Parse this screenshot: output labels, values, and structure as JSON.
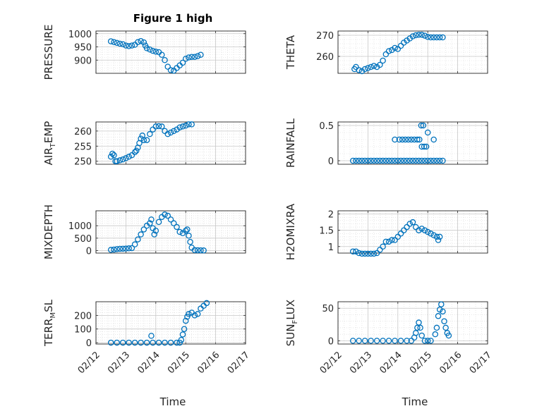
{
  "figure": {
    "title": "Figure 1 high",
    "marker_color": "#0072BD",
    "grid": "major-and-minor"
  },
  "chart_data": [
    {
      "type": "scatter",
      "ylabel": "PRESSURE",
      "ylim": [
        850,
        1010
      ],
      "yticks": [
        900,
        950,
        1000
      ],
      "xticks": [
        "02/12",
        "02/13",
        "02/14",
        "02/15",
        "02/16",
        "02/17"
      ],
      "xlim": [
        0,
        5
      ],
      "show_xticklabels": false,
      "points": [
        [
          0.5,
          971
        ],
        [
          0.6,
          968
        ],
        [
          0.7,
          965
        ],
        [
          0.8,
          962
        ],
        [
          0.9,
          960
        ],
        [
          1.0,
          955
        ],
        [
          1.1,
          953
        ],
        [
          1.2,
          955
        ],
        [
          1.3,
          958
        ],
        [
          1.4,
          968
        ],
        [
          1.5,
          972
        ],
        [
          1.6,
          967
        ],
        [
          1.65,
          955
        ],
        [
          1.7,
          945
        ],
        [
          1.8,
          940
        ],
        [
          1.9,
          935
        ],
        [
          2.0,
          932
        ],
        [
          2.1,
          930
        ],
        [
          2.2,
          920
        ],
        [
          2.3,
          900
        ],
        [
          2.4,
          875
        ],
        [
          2.5,
          862
        ],
        [
          2.6,
          860
        ],
        [
          2.7,
          870
        ],
        [
          2.8,
          880
        ],
        [
          2.9,
          890
        ],
        [
          3.0,
          905
        ],
        [
          3.1,
          910
        ],
        [
          3.2,
          912
        ],
        [
          3.3,
          912
        ],
        [
          3.4,
          915
        ],
        [
          3.5,
          920
        ]
      ]
    },
    {
      "type": "scatter",
      "ylabel": "THETA",
      "ylim": [
        252,
        272
      ],
      "yticks": [
        260,
        270
      ],
      "xticks": [
        "02/12",
        "02/13",
        "02/14",
        "02/15",
        "02/16",
        "02/17"
      ],
      "xlim": [
        0,
        5
      ],
      "show_xticklabels": false,
      "points": [
        [
          0.55,
          254
        ],
        [
          0.6,
          255
        ],
        [
          0.7,
          253.5
        ],
        [
          0.8,
          253
        ],
        [
          0.9,
          254
        ],
        [
          1.0,
          254.5
        ],
        [
          1.1,
          255
        ],
        [
          1.2,
          255.5
        ],
        [
          1.3,
          255
        ],
        [
          1.4,
          256
        ],
        [
          1.5,
          258
        ],
        [
          1.6,
          261
        ],
        [
          1.7,
          262.5
        ],
        [
          1.8,
          263
        ],
        [
          1.9,
          264
        ],
        [
          2.0,
          263.5
        ],
        [
          2.1,
          265
        ],
        [
          2.2,
          266.5
        ],
        [
          2.3,
          267.5
        ],
        [
          2.4,
          268.5
        ],
        [
          2.5,
          269.5
        ],
        [
          2.6,
          270
        ],
        [
          2.7,
          270.2
        ],
        [
          2.8,
          270.2
        ],
        [
          2.9,
          269.8
        ],
        [
          3.0,
          269.2
        ],
        [
          3.1,
          269
        ],
        [
          3.2,
          269
        ],
        [
          3.3,
          269
        ],
        [
          3.4,
          269
        ],
        [
          3.5,
          269
        ]
      ]
    },
    {
      "type": "scatter",
      "ylabel": "AIR_TEMP",
      "ylim": [
        249,
        263
      ],
      "yticks": [
        250,
        255,
        260
      ],
      "xticks": [
        "02/12",
        "02/13",
        "02/14",
        "02/15",
        "02/16",
        "02/17"
      ],
      "xlim": [
        0,
        5
      ],
      "show_xticklabels": false,
      "points": [
        [
          0.5,
          251.5
        ],
        [
          0.55,
          252.5
        ],
        [
          0.6,
          252
        ],
        [
          0.65,
          250
        ],
        [
          0.7,
          250
        ],
        [
          0.8,
          250.3
        ],
        [
          0.9,
          250.6
        ],
        [
          1.0,
          251
        ],
        [
          1.1,
          251.5
        ],
        [
          1.2,
          252
        ],
        [
          1.3,
          253
        ],
        [
          1.35,
          253.5
        ],
        [
          1.4,
          254.5
        ],
        [
          1.45,
          256
        ],
        [
          1.5,
          257.5
        ],
        [
          1.55,
          258.5
        ],
        [
          1.6,
          257
        ],
        [
          1.7,
          257
        ],
        [
          1.8,
          259
        ],
        [
          1.9,
          260.5
        ],
        [
          2.0,
          261.5
        ],
        [
          2.1,
          261.6
        ],
        [
          2.2,
          261.5
        ],
        [
          2.3,
          260
        ],
        [
          2.4,
          259
        ],
        [
          2.5,
          259.5
        ],
        [
          2.6,
          260
        ],
        [
          2.7,
          260.5
        ],
        [
          2.8,
          261.2
        ],
        [
          2.9,
          261.5
        ],
        [
          3.0,
          261.8
        ],
        [
          3.1,
          262.2
        ],
        [
          3.2,
          262.2
        ]
      ]
    },
    {
      "type": "scatter",
      "ylabel": "RAINFALL",
      "ylim": [
        -0.05,
        0.55
      ],
      "yticks": [
        0,
        0.5
      ],
      "xticks": [
        "02/12",
        "02/13",
        "02/14",
        "02/15",
        "02/16",
        "02/17"
      ],
      "xlim": [
        0,
        5
      ],
      "show_xticklabels": false,
      "points": [
        [
          0.5,
          0
        ],
        [
          0.6,
          0
        ],
        [
          0.7,
          0
        ],
        [
          0.8,
          0
        ],
        [
          0.9,
          0
        ],
        [
          1.0,
          0
        ],
        [
          1.1,
          0
        ],
        [
          1.2,
          0
        ],
        [
          1.3,
          0
        ],
        [
          1.4,
          0
        ],
        [
          1.5,
          0
        ],
        [
          1.6,
          0
        ],
        [
          1.7,
          0
        ],
        [
          1.8,
          0
        ],
        [
          1.9,
          0
        ],
        [
          2.0,
          0
        ],
        [
          2.1,
          0
        ],
        [
          2.2,
          0
        ],
        [
          2.3,
          0
        ],
        [
          2.4,
          0
        ],
        [
          2.5,
          0
        ],
        [
          2.6,
          0
        ],
        [
          2.7,
          0
        ],
        [
          2.8,
          0
        ],
        [
          2.9,
          0
        ],
        [
          3.0,
          0
        ],
        [
          3.1,
          0
        ],
        [
          3.2,
          0
        ],
        [
          3.3,
          0
        ],
        [
          3.4,
          0
        ],
        [
          3.5,
          0
        ],
        [
          1.9,
          0.3
        ],
        [
          2.05,
          0.3
        ],
        [
          2.15,
          0.3
        ],
        [
          2.25,
          0.3
        ],
        [
          2.35,
          0.3
        ],
        [
          2.45,
          0.3
        ],
        [
          2.55,
          0.3
        ],
        [
          2.65,
          0.3
        ],
        [
          2.72,
          0.3
        ],
        [
          2.78,
          0.5
        ],
        [
          2.85,
          0.5
        ],
        [
          2.8,
          0.2
        ],
        [
          2.88,
          0.2
        ],
        [
          2.95,
          0.2
        ],
        [
          3.0,
          0.4
        ],
        [
          3.2,
          0.3
        ]
      ]
    },
    {
      "type": "scatter",
      "ylabel": "MIXDEPTH",
      "ylim": [
        -100,
        1600
      ],
      "yticks": [
        0,
        500,
        1000
      ],
      "xticks": [
        "02/12",
        "02/13",
        "02/14",
        "02/15",
        "02/16",
        "02/17"
      ],
      "xlim": [
        0,
        5
      ],
      "show_xticklabels": false,
      "points": [
        [
          0.5,
          30
        ],
        [
          0.6,
          40
        ],
        [
          0.7,
          60
        ],
        [
          0.8,
          70
        ],
        [
          0.9,
          75
        ],
        [
          1.0,
          80
        ],
        [
          1.1,
          90
        ],
        [
          1.2,
          100
        ],
        [
          1.3,
          250
        ],
        [
          1.4,
          450
        ],
        [
          1.5,
          650
        ],
        [
          1.6,
          850
        ],
        [
          1.7,
          1000
        ],
        [
          1.8,
          1100
        ],
        [
          1.85,
          1250
        ],
        [
          1.9,
          900
        ],
        [
          1.95,
          650
        ],
        [
          2.0,
          800
        ],
        [
          2.1,
          1150
        ],
        [
          2.2,
          1350
        ],
        [
          2.3,
          1450
        ],
        [
          2.4,
          1400
        ],
        [
          2.5,
          1250
        ],
        [
          2.6,
          1100
        ],
        [
          2.7,
          950
        ],
        [
          2.8,
          750
        ],
        [
          2.9,
          700
        ],
        [
          3.0,
          800
        ],
        [
          3.05,
          850
        ],
        [
          3.1,
          600
        ],
        [
          3.15,
          350
        ],
        [
          3.2,
          120
        ],
        [
          3.3,
          20
        ],
        [
          3.4,
          15
        ],
        [
          3.5,
          10
        ],
        [
          3.6,
          5
        ]
      ]
    },
    {
      "type": "scatter",
      "ylabel": "H2OMIXRA",
      "ylim": [
        0.8,
        2.1
      ],
      "yticks": [
        1,
        1.5,
        2
      ],
      "xticks": [
        "02/12",
        "02/13",
        "02/14",
        "02/15",
        "02/16",
        "02/17"
      ],
      "xlim": [
        0,
        5
      ],
      "show_xticklabels": false,
      "points": [
        [
          0.5,
          0.85
        ],
        [
          0.6,
          0.85
        ],
        [
          0.7,
          0.8
        ],
        [
          0.8,
          0.78
        ],
        [
          0.9,
          0.78
        ],
        [
          1.0,
          0.78
        ],
        [
          1.1,
          0.78
        ],
        [
          1.2,
          0.78
        ],
        [
          1.3,
          0.8
        ],
        [
          1.4,
          0.9
        ],
        [
          1.5,
          1.0
        ],
        [
          1.6,
          1.15
        ],
        [
          1.7,
          1.15
        ],
        [
          1.8,
          1.2
        ],
        [
          1.9,
          1.2
        ],
        [
          2.0,
          1.3
        ],
        [
          2.1,
          1.4
        ],
        [
          2.2,
          1.5
        ],
        [
          2.3,
          1.6
        ],
        [
          2.4,
          1.7
        ],
        [
          2.5,
          1.75
        ],
        [
          2.6,
          1.6
        ],
        [
          2.7,
          1.5
        ],
        [
          2.8,
          1.55
        ],
        [
          2.9,
          1.5
        ],
        [
          3.0,
          1.45
        ],
        [
          3.1,
          1.4
        ],
        [
          3.2,
          1.35
        ],
        [
          3.3,
          1.3
        ],
        [
          3.35,
          1.2
        ],
        [
          3.4,
          1.3
        ]
      ]
    },
    {
      "type": "scatter",
      "ylabel": "TERR_MSL",
      "ylim": [
        -10,
        300
      ],
      "yticks": [
        0,
        100,
        200
      ],
      "xticks": [
        "02/12",
        "02/13",
        "02/14",
        "02/15",
        "02/16",
        "02/17"
      ],
      "xlim": [
        0,
        5
      ],
      "show_xticklabels": true,
      "points": [
        [
          0.5,
          0
        ],
        [
          0.7,
          0
        ],
        [
          0.9,
          0
        ],
        [
          1.1,
          0
        ],
        [
          1.3,
          0
        ],
        [
          1.5,
          0
        ],
        [
          1.7,
          0
        ],
        [
          1.9,
          0
        ],
        [
          2.1,
          0
        ],
        [
          2.3,
          0
        ],
        [
          2.5,
          0
        ],
        [
          2.7,
          0
        ],
        [
          2.8,
          0
        ],
        [
          1.85,
          50
        ],
        [
          2.85,
          20
        ],
        [
          2.9,
          60
        ],
        [
          2.95,
          100
        ],
        [
          3.0,
          160
        ],
        [
          3.05,
          190
        ],
        [
          3.1,
          210
        ],
        [
          3.2,
          220
        ],
        [
          3.3,
          200
        ],
        [
          3.4,
          210
        ],
        [
          3.5,
          250
        ],
        [
          3.6,
          270
        ],
        [
          3.7,
          290
        ]
      ]
    },
    {
      "type": "scatter",
      "ylabel": "SUN_FLUX",
      "ylim": [
        -5,
        60
      ],
      "yticks": [
        0,
        50
      ],
      "xticks": [
        "02/12",
        "02/13",
        "02/14",
        "02/15",
        "02/16",
        "02/17"
      ],
      "xlim": [
        0,
        5
      ],
      "show_xticklabels": true,
      "points": [
        [
          0.5,
          0
        ],
        [
          0.7,
          0
        ],
        [
          0.9,
          0
        ],
        [
          1.1,
          0
        ],
        [
          1.3,
          0
        ],
        [
          1.5,
          0
        ],
        [
          1.7,
          0
        ],
        [
          1.9,
          0
        ],
        [
          2.1,
          0
        ],
        [
          2.3,
          0
        ],
        [
          2.45,
          0
        ],
        [
          2.55,
          5
        ],
        [
          2.6,
          12
        ],
        [
          2.65,
          20
        ],
        [
          2.7,
          28
        ],
        [
          2.75,
          20
        ],
        [
          2.8,
          8
        ],
        [
          2.9,
          0
        ],
        [
          3.0,
          0
        ],
        [
          3.1,
          0
        ],
        [
          3.25,
          10
        ],
        [
          3.3,
          20
        ],
        [
          3.35,
          38
        ],
        [
          3.4,
          48
        ],
        [
          3.45,
          56
        ],
        [
          3.5,
          45
        ],
        [
          3.55,
          30
        ],
        [
          3.6,
          20
        ],
        [
          3.65,
          12
        ],
        [
          3.7,
          8
        ]
      ]
    }
  ],
  "xlabels": [
    "Time",
    "Time"
  ]
}
